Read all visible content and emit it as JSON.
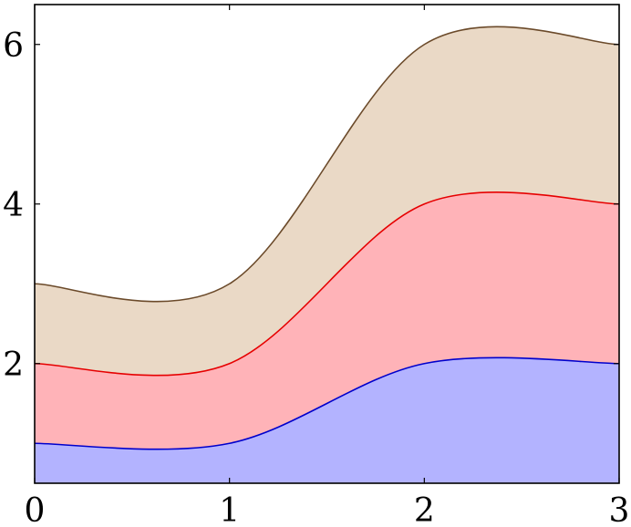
{
  "chart_data": {
    "type": "area",
    "stacked": true,
    "smooth": true,
    "x": [
      0,
      1,
      2,
      3
    ],
    "series": [
      {
        "values": [
          1,
          1,
          2,
          2
        ],
        "line_color": "#0000cc",
        "fill_color": "#b3b3ff"
      },
      {
        "values": [
          1,
          1,
          2,
          2
        ],
        "line_color": "#e60000",
        "fill_color": "#ffb3b8"
      },
      {
        "values": [
          1,
          1,
          2,
          2
        ],
        "line_color": "#6b4a2a",
        "fill_color": "#ead9c6"
      }
    ],
    "xlim": [
      0,
      3
    ],
    "ylim": [
      0.5,
      6.5
    ],
    "x_ticks": [
      0,
      1,
      2,
      3
    ],
    "x_tick_labels": [
      "0",
      "1",
      "2",
      "3"
    ],
    "y_ticks": [
      2,
      4,
      6
    ],
    "y_tick_labels": [
      "2",
      "4",
      "6"
    ],
    "grid": false,
    "title": "",
    "xlabel": "",
    "ylabel": ""
  }
}
